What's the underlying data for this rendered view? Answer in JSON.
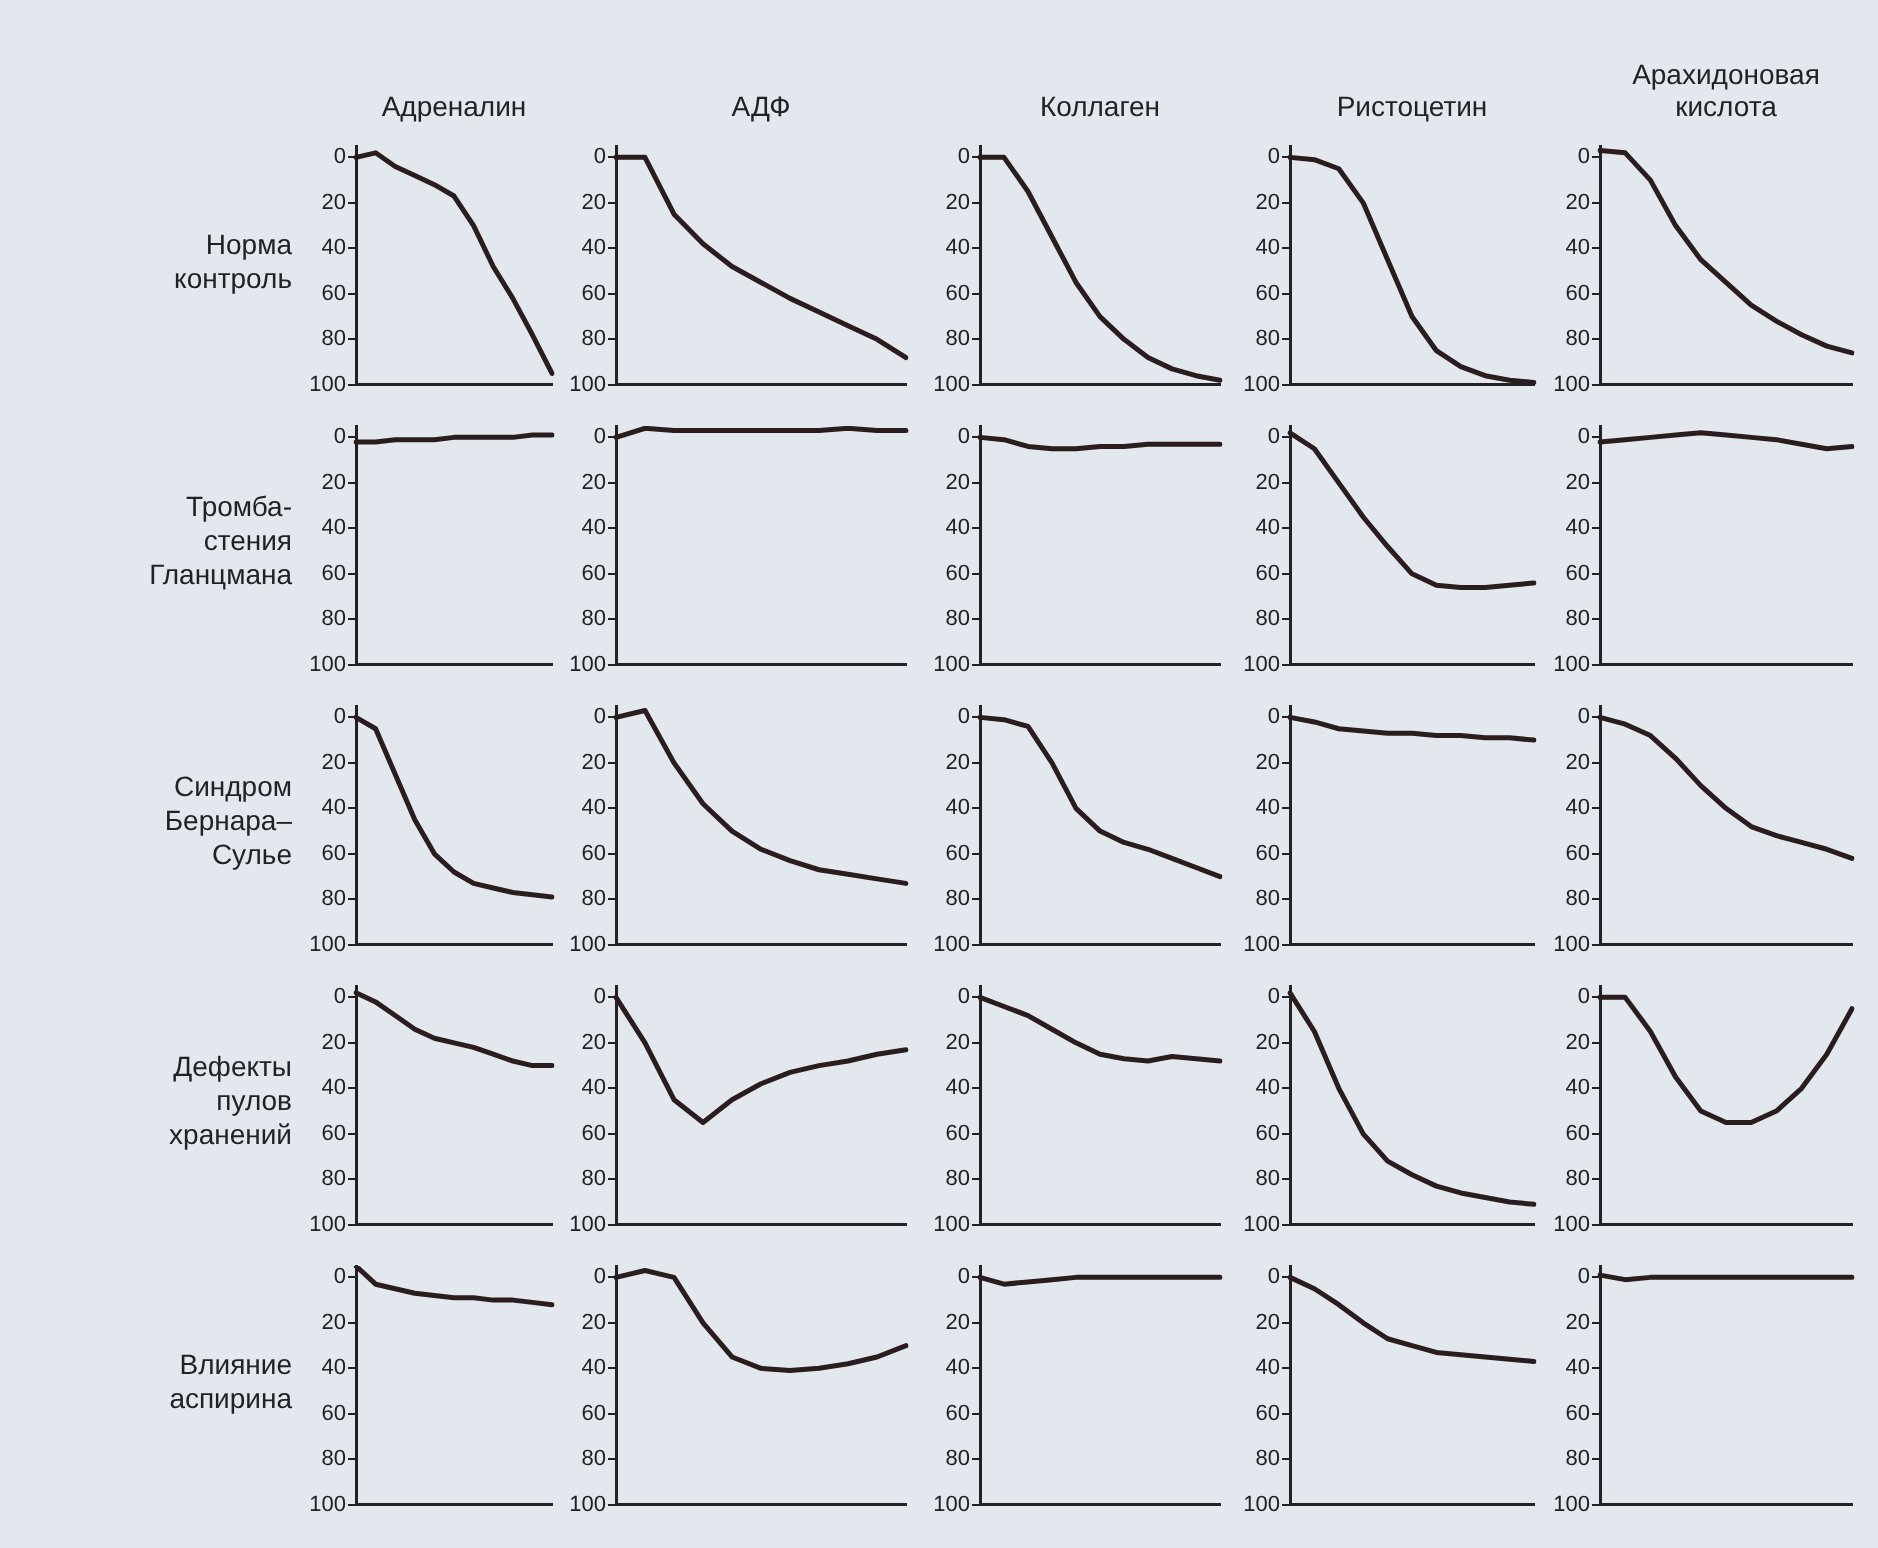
{
  "chart_data": [
    {
      "type": "line",
      "title": "Адреналин",
      "ylabel": "Норма\nконтроль",
      "categories": [
        null,
        null,
        null,
        null,
        null,
        null,
        null,
        null,
        null,
        null,
        null
      ],
      "values": [
        0,
        -2,
        4,
        8,
        12,
        17,
        30,
        48,
        62,
        78,
        95
      ],
      "color": "#2b1d1d",
      "ylim": [
        100,
        -5
      ],
      "yticks": [
        0,
        20,
        40,
        60,
        80,
        100
      ],
      "tick_labels": "y"
    },
    {
      "type": "line",
      "title": "АДФ",
      "categories": [
        null,
        null,
        null,
        null,
        null,
        null,
        null,
        null,
        null,
        null,
        null
      ],
      "values": [
        0,
        0,
        25,
        38,
        48,
        55,
        62,
        68,
        74,
        80,
        88
      ],
      "color": "#2b1d1d",
      "ylim": [
        100,
        -5
      ],
      "yticks": [
        0,
        20,
        40,
        60,
        80,
        100
      ],
      "tick_labels": "y"
    },
    {
      "type": "line",
      "title": "Коллаген",
      "categories": [
        null,
        null,
        null,
        null,
        null,
        null,
        null,
        null,
        null,
        null,
        null
      ],
      "values": [
        0,
        0,
        15,
        35,
        55,
        70,
        80,
        88,
        93,
        96,
        98
      ],
      "color": "#2b1d1d",
      "ylim": [
        100,
        -5
      ],
      "yticks": [
        0,
        20,
        40,
        60,
        80,
        100
      ],
      "tick_labels": "y"
    },
    {
      "type": "line",
      "title": "Ристоцетин",
      "categories": [
        null,
        null,
        null,
        null,
        null,
        null,
        null,
        null,
        null,
        null,
        null
      ],
      "values": [
        0,
        1,
        5,
        20,
        45,
        70,
        85,
        92,
        96,
        98,
        99
      ],
      "color": "#2b1d1d",
      "ylim": [
        100,
        -5
      ],
      "yticks": [
        0,
        20,
        40,
        60,
        80,
        100
      ],
      "tick_labels": "y"
    },
    {
      "type": "line",
      "title": "Арахидоновая\nкислота",
      "categories": [
        null,
        null,
        null,
        null,
        null,
        null,
        null,
        null,
        null,
        null,
        null
      ],
      "values": [
        -3,
        -2,
        10,
        30,
        45,
        55,
        65,
        72,
        78,
        83,
        86
      ],
      "color": "#2b1d1d",
      "ylim": [
        100,
        -5
      ],
      "yticks": [
        0,
        20,
        40,
        60,
        80,
        100
      ],
      "tick_labels": "y"
    },
    {
      "type": "line",
      "ylabel": "Тромба-\nстения\nГланцмана",
      "categories": [
        null,
        null,
        null,
        null,
        null,
        null,
        null,
        null,
        null,
        null,
        null
      ],
      "values": [
        2,
        2,
        1,
        1,
        1,
        0,
        0,
        0,
        0,
        -1,
        -1
      ],
      "color": "#2b1d1d",
      "ylim": [
        100,
        -5
      ],
      "yticks": [
        0,
        20,
        40,
        60,
        80,
        100
      ],
      "tick_labels": "y"
    },
    {
      "type": "line",
      "categories": [
        null,
        null,
        null,
        null,
        null,
        null,
        null,
        null,
        null,
        null,
        null
      ],
      "values": [
        0,
        -4,
        -3,
        -3,
        -3,
        -3,
        -3,
        -3,
        -4,
        -3,
        -3
      ],
      "color": "#2b1d1d",
      "ylim": [
        100,
        -5
      ],
      "yticks": [
        0,
        20,
        40,
        60,
        80,
        100
      ],
      "tick_labels": "y"
    },
    {
      "type": "line",
      "categories": [
        null,
        null,
        null,
        null,
        null,
        null,
        null,
        null,
        null,
        null,
        null
      ],
      "values": [
        0,
        1,
        4,
        5,
        5,
        4,
        4,
        3,
        3,
        3,
        3
      ],
      "color": "#2b1d1d",
      "ylim": [
        100,
        -5
      ],
      "yticks": [
        0,
        20,
        40,
        60,
        80,
        100
      ],
      "tick_labels": "y"
    },
    {
      "type": "line",
      "categories": [
        null,
        null,
        null,
        null,
        null,
        null,
        null,
        null,
        null,
        null,
        null
      ],
      "values": [
        -2,
        5,
        20,
        35,
        48,
        60,
        65,
        66,
        66,
        65,
        64
      ],
      "color": "#2b1d1d",
      "ylim": [
        100,
        -5
      ],
      "yticks": [
        0,
        20,
        40,
        60,
        80,
        100
      ],
      "tick_labels": "y"
    },
    {
      "type": "line",
      "categories": [
        null,
        null,
        null,
        null,
        null,
        null,
        null,
        null,
        null,
        null,
        null
      ],
      "values": [
        2,
        1,
        0,
        -1,
        -2,
        -1,
        0,
        1,
        3,
        5,
        4
      ],
      "color": "#2b1d1d",
      "ylim": [
        100,
        -5
      ],
      "yticks": [
        0,
        20,
        40,
        60,
        80,
        100
      ],
      "tick_labels": "y"
    },
    {
      "type": "line",
      "ylabel": "Синдром\nБернара–\nСулье",
      "categories": [
        null,
        null,
        null,
        null,
        null,
        null,
        null,
        null,
        null,
        null,
        null
      ],
      "values": [
        0,
        5,
        25,
        45,
        60,
        68,
        73,
        75,
        77,
        78,
        79
      ],
      "color": "#2b1d1d",
      "ylim": [
        100,
        -5
      ],
      "yticks": [
        0,
        20,
        40,
        60,
        80,
        100
      ],
      "tick_labels": "y"
    },
    {
      "type": "line",
      "categories": [
        null,
        null,
        null,
        null,
        null,
        null,
        null,
        null,
        null,
        null,
        null
      ],
      "values": [
        0,
        -3,
        20,
        38,
        50,
        58,
        63,
        67,
        69,
        71,
        73
      ],
      "color": "#2b1d1d",
      "ylim": [
        100,
        -5
      ],
      "yticks": [
        0,
        20,
        40,
        60,
        80,
        100
      ],
      "tick_labels": "y"
    },
    {
      "type": "line",
      "categories": [
        null,
        null,
        null,
        null,
        null,
        null,
        null,
        null,
        null,
        null,
        null
      ],
      "values": [
        0,
        1,
        4,
        20,
        40,
        50,
        55,
        58,
        62,
        66,
        70
      ],
      "color": "#2b1d1d",
      "ylim": [
        100,
        -5
      ],
      "yticks": [
        0,
        20,
        40,
        60,
        80,
        100
      ],
      "tick_labels": "y"
    },
    {
      "type": "line",
      "categories": [
        null,
        null,
        null,
        null,
        null,
        null,
        null,
        null,
        null,
        null,
        null
      ],
      "values": [
        0,
        2,
        5,
        6,
        7,
        7,
        8,
        8,
        9,
        9,
        10
      ],
      "color": "#2b1d1d",
      "ylim": [
        100,
        -5
      ],
      "yticks": [
        0,
        20,
        40,
        60,
        80,
        100
      ],
      "tick_labels": "y"
    },
    {
      "type": "line",
      "categories": [
        null,
        null,
        null,
        null,
        null,
        null,
        null,
        null,
        null,
        null,
        null
      ],
      "values": [
        0,
        3,
        8,
        18,
        30,
        40,
        48,
        52,
        55,
        58,
        62
      ],
      "color": "#2b1d1d",
      "ylim": [
        100,
        -5
      ],
      "yticks": [
        0,
        20,
        40,
        60,
        80,
        100
      ],
      "tick_labels": "y"
    },
    {
      "type": "line",
      "ylabel": "Дефекты\nпулов\nхранений",
      "categories": [
        null,
        null,
        null,
        null,
        null,
        null,
        null,
        null,
        null,
        null,
        null
      ],
      "values": [
        -2,
        2,
        8,
        14,
        18,
        20,
        22,
        25,
        28,
        30,
        30
      ],
      "color": "#2b1d1d",
      "ylim": [
        100,
        -5
      ],
      "yticks": [
        0,
        20,
        40,
        60,
        80,
        100
      ],
      "tick_labels": "y"
    },
    {
      "type": "line",
      "categories": [
        null,
        null,
        null,
        null,
        null,
        null,
        null,
        null,
        null,
        null,
        null
      ],
      "values": [
        0,
        20,
        45,
        55,
        45,
        38,
        33,
        30,
        28,
        25,
        23
      ],
      "color": "#2b1d1d",
      "ylim": [
        100,
        -5
      ],
      "yticks": [
        0,
        20,
        40,
        60,
        80,
        100
      ],
      "tick_labels": "y"
    },
    {
      "type": "line",
      "categories": [
        null,
        null,
        null,
        null,
        null,
        null,
        null,
        null,
        null,
        null,
        null
      ],
      "values": [
        0,
        4,
        8,
        14,
        20,
        25,
        27,
        28,
        26,
        27,
        28
      ],
      "color": "#2b1d1d",
      "ylim": [
        100,
        -5
      ],
      "yticks": [
        0,
        20,
        40,
        60,
        80,
        100
      ],
      "tick_labels": "y"
    },
    {
      "type": "line",
      "categories": [
        null,
        null,
        null,
        null,
        null,
        null,
        null,
        null,
        null,
        null,
        null
      ],
      "values": [
        -2,
        15,
        40,
        60,
        72,
        78,
        83,
        86,
        88,
        90,
        91
      ],
      "color": "#2b1d1d",
      "ylim": [
        100,
        -5
      ],
      "yticks": [
        0,
        20,
        40,
        60,
        80,
        100
      ],
      "tick_labels": "y"
    },
    {
      "type": "line",
      "categories": [
        null,
        null,
        null,
        null,
        null,
        null,
        null,
        null,
        null,
        null,
        null
      ],
      "values": [
        0,
        0,
        15,
        35,
        50,
        55,
        55,
        50,
        40,
        25,
        5
      ],
      "color": "#2b1d1d",
      "ylim": [
        100,
        -5
      ],
      "yticks": [
        0,
        20,
        40,
        60,
        80,
        100
      ],
      "tick_labels": "y"
    },
    {
      "type": "line",
      "ylabel": "Влияние\nаспирина",
      "categories": [
        null,
        null,
        null,
        null,
        null,
        null,
        null,
        null,
        null,
        null,
        null
      ],
      "values": [
        -5,
        3,
        5,
        7,
        8,
        9,
        9,
        10,
        10,
        11,
        12
      ],
      "color": "#2b1d1d",
      "ylim": [
        100,
        -5
      ],
      "yticks": [
        0,
        20,
        40,
        60,
        80,
        100
      ],
      "tick_labels": "y"
    },
    {
      "type": "line",
      "categories": [
        null,
        null,
        null,
        null,
        null,
        null,
        null,
        null,
        null,
        null,
        null
      ],
      "values": [
        0,
        -3,
        0,
        20,
        35,
        40,
        41,
        40,
        38,
        35,
        30
      ],
      "color": "#2b1d1d",
      "ylim": [
        100,
        -5
      ],
      "yticks": [
        0,
        20,
        40,
        60,
        80,
        100
      ],
      "tick_labels": "y"
    },
    {
      "type": "line",
      "categories": [
        null,
        null,
        null,
        null,
        null,
        null,
        null,
        null,
        null,
        null,
        null
      ],
      "values": [
        0,
        3,
        2,
        1,
        0,
        0,
        0,
        0,
        0,
        0,
        0
      ],
      "color": "#2b1d1d",
      "ylim": [
        100,
        -5
      ],
      "yticks": [
        0,
        20,
        40,
        60,
        80,
        100
      ],
      "tick_labels": "y"
    },
    {
      "type": "line",
      "categories": [
        null,
        null,
        null,
        null,
        null,
        null,
        null,
        null,
        null,
        null,
        null
      ],
      "values": [
        0,
        5,
        12,
        20,
        27,
        30,
        33,
        34,
        35,
        36,
        37
      ],
      "color": "#2b1d1d",
      "ylim": [
        100,
        -5
      ],
      "yticks": [
        0,
        20,
        40,
        60,
        80,
        100
      ],
      "tick_labels": "y"
    },
    {
      "type": "line",
      "categories": [
        null,
        null,
        null,
        null,
        null,
        null,
        null,
        null,
        null,
        null,
        null
      ],
      "values": [
        -1,
        1,
        0,
        0,
        0,
        0,
        0,
        0,
        0,
        0,
        0
      ],
      "color": "#2b1d1d",
      "ylim": [
        100,
        -5
      ],
      "yticks": [
        0,
        20,
        40,
        60,
        80,
        100
      ],
      "tick_labels": "y"
    }
  ]
}
